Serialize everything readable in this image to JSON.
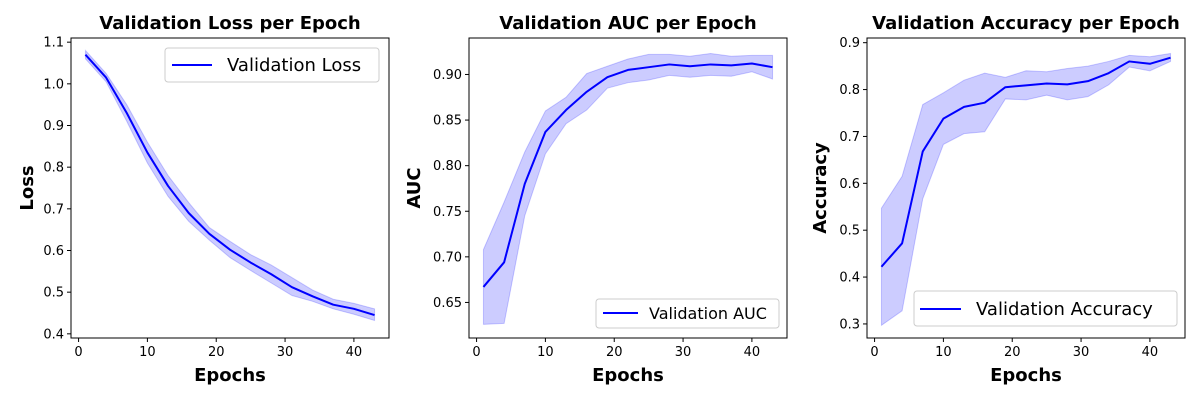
{
  "chart_data": [
    {
      "type": "line",
      "title": "Validation Loss per Epoch",
      "xlabel": "Epochs",
      "ylabel": "Loss",
      "xlim": [
        -1.1,
        45.1
      ],
      "ylim": [
        0.39,
        1.11
      ],
      "xticks": [
        0,
        10,
        20,
        30,
        40
      ],
      "yticks": [
        0.4,
        0.5,
        0.6,
        0.7,
        0.8,
        0.9,
        1.0,
        1.1
      ],
      "grid": false,
      "legend_position": "top-right",
      "series": [
        {
          "name": "Validation Loss",
          "color": "#0000ff",
          "x": [
            1,
            4,
            7,
            10,
            13,
            16,
            19,
            22,
            25,
            28,
            31,
            34,
            37,
            40,
            43
          ],
          "y": [
            1.07,
            1.015,
            0.93,
            0.835,
            0.755,
            0.69,
            0.64,
            0.602,
            0.571,
            0.543,
            0.512,
            0.49,
            0.47,
            0.46,
            0.445
          ],
          "lower": [
            1.06,
            1.005,
            0.91,
            0.81,
            0.73,
            0.67,
            0.625,
            0.583,
            0.552,
            0.522,
            0.492,
            0.478,
            0.46,
            0.447,
            0.432
          ],
          "upper": [
            1.08,
            1.025,
            0.95,
            0.86,
            0.78,
            0.715,
            0.655,
            0.622,
            0.59,
            0.565,
            0.535,
            0.505,
            0.483,
            0.473,
            0.46
          ]
        }
      ]
    },
    {
      "type": "line",
      "title": "Validation AUC per Epoch",
      "xlabel": "Epochs",
      "ylabel": "AUC",
      "xlim": [
        -1.1,
        45.1
      ],
      "ylim": [
        0.611,
        0.94
      ],
      "xticks": [
        0,
        10,
        20,
        30,
        40
      ],
      "yticks": [
        0.65,
        0.7,
        0.75,
        0.8,
        0.85,
        0.9
      ],
      "grid": false,
      "legend_position": "bottom-right",
      "series": [
        {
          "name": "Validation AUC",
          "color": "#0000ff",
          "x": [
            1,
            4,
            7,
            10,
            13,
            16,
            19,
            22,
            25,
            28,
            31,
            34,
            37,
            40,
            43
          ],
          "y": [
            0.667,
            0.694,
            0.78,
            0.837,
            0.861,
            0.881,
            0.897,
            0.905,
            0.908,
            0.911,
            0.909,
            0.911,
            0.91,
            0.912,
            0.908
          ],
          "lower": [
            0.626,
            0.627,
            0.745,
            0.813,
            0.846,
            0.861,
            0.885,
            0.891,
            0.894,
            0.899,
            0.897,
            0.899,
            0.898,
            0.903,
            0.895
          ],
          "upper": [
            0.708,
            0.76,
            0.815,
            0.86,
            0.875,
            0.901,
            0.909,
            0.917,
            0.922,
            0.922,
            0.92,
            0.923,
            0.92,
            0.921,
            0.921
          ]
        }
      ]
    },
    {
      "type": "line",
      "title": "Validation Accuracy per Epoch",
      "xlabel": "Epochs",
      "ylabel": "Accuracy",
      "xlim": [
        -1.1,
        45.1
      ],
      "ylim": [
        0.27,
        0.91
      ],
      "xticks": [
        0,
        10,
        20,
        30,
        40
      ],
      "yticks": [
        0.3,
        0.4,
        0.5,
        0.6,
        0.7,
        0.8,
        0.9
      ],
      "grid": false,
      "legend_position": "bottom-right",
      "series": [
        {
          "name": "Validation Accuracy",
          "color": "#0000ff",
          "x": [
            1,
            4,
            7,
            10,
            13,
            16,
            19,
            22,
            25,
            28,
            31,
            34,
            37,
            40,
            43
          ],
          "y": [
            0.422,
            0.472,
            0.668,
            0.738,
            0.763,
            0.772,
            0.805,
            0.809,
            0.813,
            0.811,
            0.818,
            0.835,
            0.86,
            0.855,
            0.868
          ],
          "lower": [
            0.297,
            0.328,
            0.567,
            0.683,
            0.706,
            0.71,
            0.78,
            0.778,
            0.788,
            0.778,
            0.785,
            0.81,
            0.848,
            0.84,
            0.86
          ],
          "upper": [
            0.547,
            0.615,
            0.768,
            0.793,
            0.82,
            0.835,
            0.826,
            0.84,
            0.838,
            0.845,
            0.85,
            0.86,
            0.873,
            0.87,
            0.877
          ]
        }
      ]
    }
  ]
}
